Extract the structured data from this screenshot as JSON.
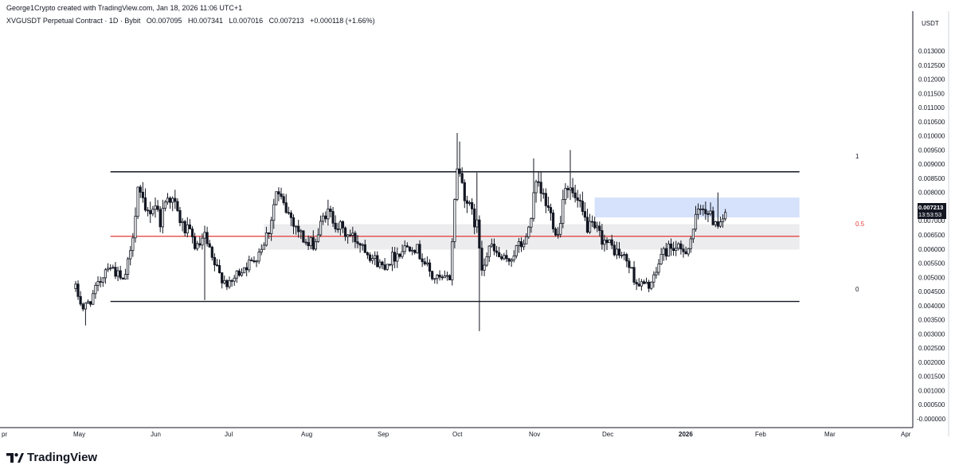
{
  "header": {
    "credit": "George1Crypto created with TradingView.com, Jan 18, 2026 11:06 UTC+1"
  },
  "legend": {
    "symbol": "XVGUSDT Perpetual Contract · 1D · Bybit",
    "open": "O0.007095",
    "high": "H0.007341",
    "low": "L0.007016",
    "close": "C0.007213",
    "change": "+0.000118 (+1.66%)"
  },
  "price_axis": {
    "currency": "USDT",
    "last_price": "0.007213",
    "countdown": "13:53:53"
  },
  "fib": {
    "label_top": "1",
    "label_mid": "0.5",
    "label_bottom": "0"
  },
  "branding": {
    "logo_text": "TradingView"
  },
  "colors": {
    "up": "#089981",
    "down": "#f23645",
    "candle": "#131722",
    "fib_mid": "#e53935",
    "zone_blue": "#d6e2fb",
    "zone_grey": "#ececee"
  },
  "chart_data": {
    "type": "candlestick",
    "title": "XVGUSDT Perpetual Contract · 1D · Bybit",
    "x_axis": {
      "ticks": [
        "pr",
        "May",
        "Jun",
        "Jul",
        "Aug",
        "Sep",
        "Oct",
        "Nov",
        "Dec",
        "2026",
        "Feb",
        "Mar",
        "Apr"
      ]
    },
    "y_axis": {
      "unit": "USDT",
      "range": [
        -0.0001,
        0.0138
      ],
      "ticks": [
        "0.013000",
        "0.012500",
        "0.012000",
        "0.011500",
        "0.011000",
        "0.010500",
        "0.010000",
        "0.009500",
        "0.009000",
        "0.008500",
        "0.008000",
        "0.007500",
        "0.007000",
        "0.006500",
        "0.006000",
        "0.005500",
        "0.005000",
        "0.004500",
        "0.004000",
        "0.003500",
        "0.003000",
        "0.002500",
        "0.002000",
        "0.001500",
        "0.001000",
        "0.000500",
        "-0.000000"
      ]
    },
    "fib_levels": [
      {
        "label": "1",
        "price": 0.00873
      },
      {
        "label": "0.5",
        "price": 0.00645
      },
      {
        "label": "0",
        "price": 0.00415
      }
    ],
    "zones": [
      {
        "name": "blue",
        "price_from": 0.00712,
        "price_to": 0.00782
      },
      {
        "name": "grey",
        "price_from": 0.00598,
        "price_to": 0.00688
      }
    ],
    "close_path": [
      [
        "2025-04-30",
        0.0046
      ],
      [
        "2025-05-03",
        0.0039
      ],
      [
        "2025-05-06",
        0.0042
      ],
      [
        "2025-05-10",
        0.0049
      ],
      [
        "2025-05-13",
        0.0055
      ],
      [
        "2025-05-16",
        0.0052
      ],
      [
        "2025-05-19",
        0.0048
      ],
      [
        "2025-05-22",
        0.0058
      ],
      [
        "2025-05-25",
        0.0082
      ],
      [
        "2025-05-28",
        0.0072
      ],
      [
        "2025-06-01",
        0.0076
      ],
      [
        "2025-06-03",
        0.007
      ],
      [
        "2025-06-06",
        0.008
      ],
      [
        "2025-06-09",
        0.0075
      ],
      [
        "2025-06-12",
        0.0068
      ],
      [
        "2025-06-15",
        0.0065
      ],
      [
        "2025-06-18",
        0.006
      ],
      [
        "2025-06-21",
        0.0064
      ],
      [
        "2025-06-24",
        0.0056
      ],
      [
        "2025-06-27",
        0.0051
      ],
      [
        "2025-07-01",
        0.0047
      ],
      [
        "2025-07-04",
        0.0051
      ],
      [
        "2025-07-07",
        0.0054
      ],
      [
        "2025-07-10",
        0.0055
      ],
      [
        "2025-07-14",
        0.0061
      ],
      [
        "2025-07-17",
        0.0067
      ],
      [
        "2025-07-20",
        0.008
      ],
      [
        "2025-07-23",
        0.0075
      ],
      [
        "2025-07-27",
        0.007
      ],
      [
        "2025-07-30",
        0.0065
      ],
      [
        "2025-08-02",
        0.0061
      ],
      [
        "2025-08-05",
        0.0063
      ],
      [
        "2025-08-09",
        0.0073
      ],
      [
        "2025-08-12",
        0.0071
      ],
      [
        "2025-08-16",
        0.0066
      ],
      [
        "2025-08-20",
        0.0064
      ],
      [
        "2025-08-24",
        0.0062
      ],
      [
        "2025-08-28",
        0.0057
      ],
      [
        "2025-09-01",
        0.0054
      ],
      [
        "2025-09-05",
        0.0057
      ],
      [
        "2025-09-09",
        0.006
      ],
      [
        "2025-09-13",
        0.0062
      ],
      [
        "2025-09-17",
        0.0057
      ],
      [
        "2025-09-21",
        0.005
      ],
      [
        "2025-09-25",
        0.0049
      ],
      [
        "2025-09-28",
        0.005
      ],
      [
        "2025-10-01",
        0.009
      ],
      [
        "2025-10-03",
        0.0083
      ],
      [
        "2025-10-06",
        0.0074
      ],
      [
        "2025-10-09",
        0.0068
      ],
      [
        "2025-10-11",
        0.0054
      ],
      [
        "2025-10-14",
        0.0061
      ],
      [
        "2025-10-17",
        0.0058
      ],
      [
        "2025-10-21",
        0.0055
      ],
      [
        "2025-10-25",
        0.006
      ],
      [
        "2025-10-29",
        0.0063
      ],
      [
        "2025-11-02",
        0.0082
      ],
      [
        "2025-11-05",
        0.0078
      ],
      [
        "2025-11-08",
        0.0072
      ],
      [
        "2025-11-11",
        0.0065
      ],
      [
        "2025-11-14",
        0.0084
      ],
      [
        "2025-11-17",
        0.0079
      ],
      [
        "2025-11-20",
        0.0074
      ],
      [
        "2025-11-23",
        0.0068
      ],
      [
        "2025-11-27",
        0.0066
      ],
      [
        "2025-12-01",
        0.0062
      ],
      [
        "2025-12-05",
        0.0059
      ],
      [
        "2025-12-09",
        0.0056
      ],
      [
        "2025-12-13",
        0.0048
      ],
      [
        "2025-12-17",
        0.0047
      ],
      [
        "2025-12-20",
        0.0049
      ],
      [
        "2025-12-23",
        0.0058
      ],
      [
        "2025-12-27",
        0.0061
      ],
      [
        "2025-12-31",
        0.0059
      ],
      [
        "2026-01-03",
        0.0061
      ],
      [
        "2026-01-06",
        0.007
      ],
      [
        "2026-01-09",
        0.0076
      ],
      [
        "2026-01-12",
        0.0071
      ],
      [
        "2026-01-15",
        0.007
      ],
      [
        "2026-01-18",
        0.007213
      ]
    ]
  }
}
